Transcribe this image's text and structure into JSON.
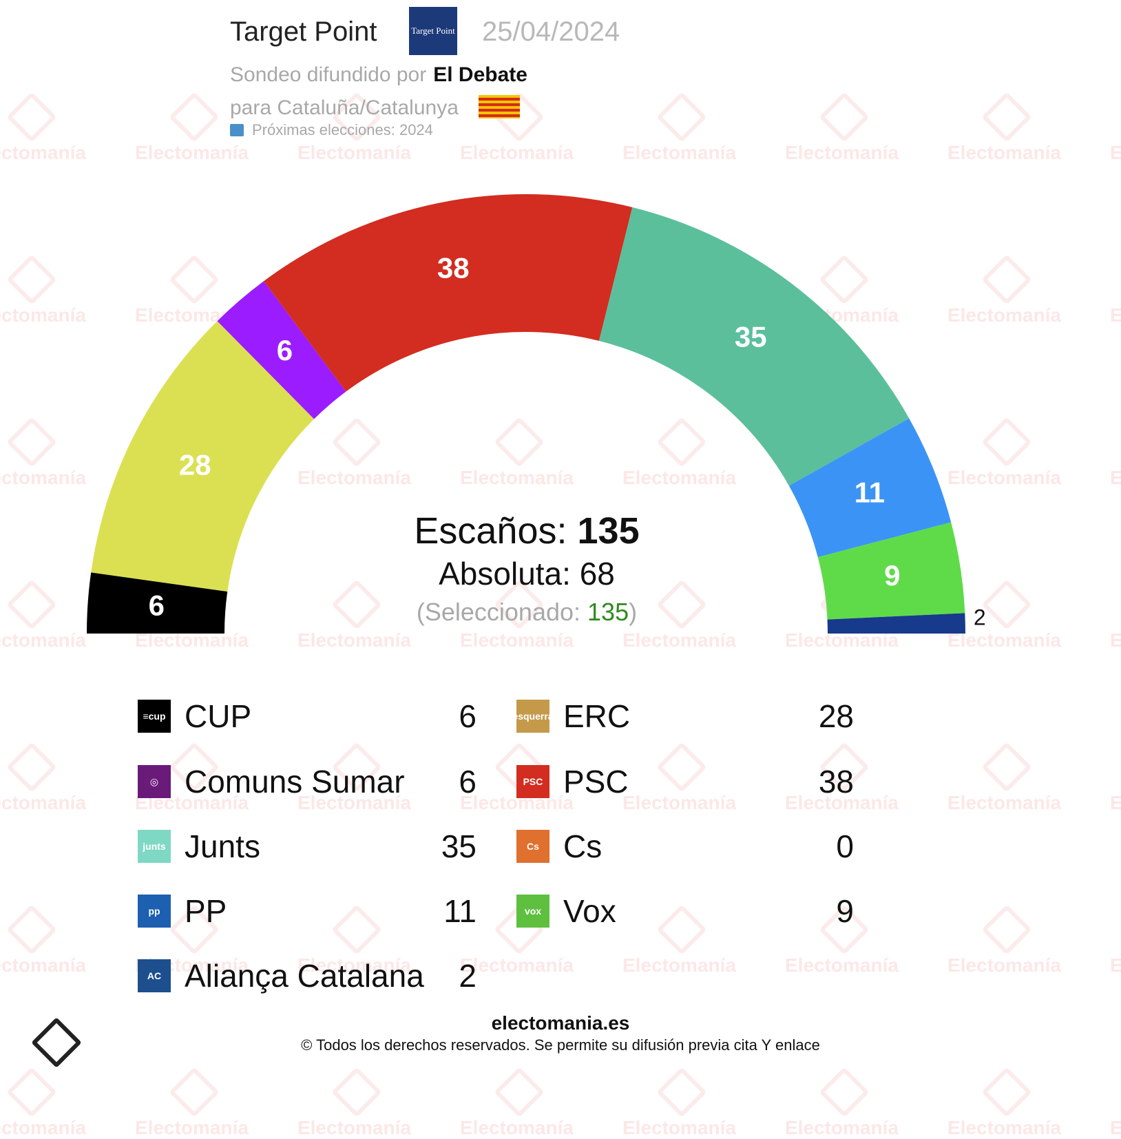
{
  "header": {
    "pollster": "Target Point",
    "pollster_logo_text": "Target Point",
    "date": "25/04/2024",
    "spread_by_label": "Sondeo difundido por",
    "media": "El Debate",
    "region": "para Cataluña/Catalunya",
    "next_elections": "Próximas elecciones: 2024"
  },
  "watermark": "Electomanía",
  "center": {
    "seats_label": "Escaños:",
    "seats_total": "135",
    "absolute_label": "Absoluta: 68",
    "selected_open": "(Seleccionado: ",
    "selected_value": "135",
    "selected_close": ")"
  },
  "chart_data": {
    "type": "hemicycle",
    "total_seats": 135,
    "majority": 68,
    "series": [
      {
        "name": "CUP",
        "value": 6,
        "color": "#000000"
      },
      {
        "name": "ERC",
        "value": 28,
        "color": "#dbe052"
      },
      {
        "name": "Comuns Sumar",
        "value": 6,
        "color": "#9b1cff"
      },
      {
        "name": "PSC",
        "value": 38,
        "color": "#d22d20"
      },
      {
        "name": "Junts",
        "value": 35,
        "color": "#5bbf9b"
      },
      {
        "name": "PP",
        "value": 11,
        "color": "#3b94f5"
      },
      {
        "name": "Vox",
        "value": 9,
        "color": "#5fdb4a"
      },
      {
        "name": "Aliança Catalana",
        "value": 2,
        "color": "#183a8c"
      }
    ]
  },
  "legend": [
    {
      "name": "CUP",
      "seats": "6",
      "logo_text": "≡cup",
      "logo_color": "#000000"
    },
    {
      "name": "ERC",
      "seats": "28",
      "logo_text": "esquerra",
      "logo_color": "#c49a4a"
    },
    {
      "name": "Comuns Sumar",
      "seats": "6",
      "logo_text": "◎",
      "logo_color": "#6a1b7a"
    },
    {
      "name": "PSC",
      "seats": "38",
      "logo_text": "PSC",
      "logo_color": "#d22d20"
    },
    {
      "name": "Junts",
      "seats": "35",
      "logo_text": "junts",
      "logo_color": "#7fd8c4"
    },
    {
      "name": "Cs",
      "seats": "0",
      "logo_text": "Cs",
      "logo_color": "#e0702e"
    },
    {
      "name": "PP",
      "seats": "11",
      "logo_text": "pp",
      "logo_color": "#1d5fb0"
    },
    {
      "name": "Vox",
      "seats": "9",
      "logo_text": "vox",
      "logo_color": "#5fc040"
    },
    {
      "name": "Aliança Catalana",
      "seats": "2",
      "logo_text": "AC",
      "logo_color": "#1d4f8f"
    }
  ],
  "footer": {
    "site": "electomania.es",
    "copyright": "© Todos los derechos reservados. Se permite su difusión previa cita Y enlace"
  }
}
